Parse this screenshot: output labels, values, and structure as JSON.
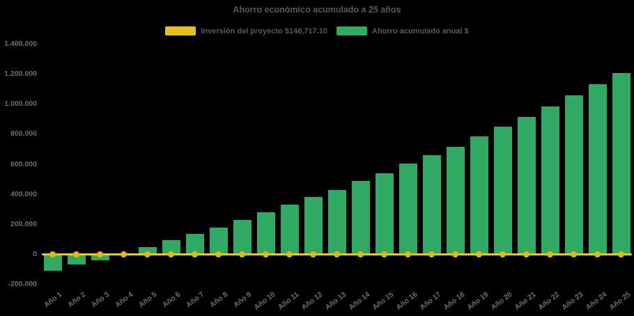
{
  "title": "Ahorro económico acumulado a 25 años",
  "legend": [
    {
      "label": "Inversión del proyecto $146,717.10",
      "color": "#E8C01A"
    },
    {
      "label": "Ahorro acumulado anual $",
      "color": "#2FA964"
    }
  ],
  "chart_data": {
    "type": "bar",
    "title": "Ahorro económico acumulado a 25 años",
    "background": "#000000",
    "grid": false,
    "legend_position": "top-center",
    "xlabel": "",
    "ylabel": "",
    "ylim": [
      -200000,
      1400000
    ],
    "y_ticks": [
      {
        "label": "1.400.000",
        "value": 1400000
      },
      {
        "label": "1.200.000",
        "value": 1200000
      },
      {
        "label": "1.000.000",
        "value": 1000000
      },
      {
        "label": "800.000",
        "value": 800000
      },
      {
        "label": "600.000",
        "value": 600000
      },
      {
        "label": "400.000",
        "value": 400000
      },
      {
        "label": "200.000",
        "value": 200000
      },
      {
        "label": "0",
        "value": 0
      },
      {
        "label": "-200.000",
        "value": -200000
      }
    ],
    "categories": [
      "Año 1",
      "Año 2",
      "Año 3",
      "Año 4",
      "Año 5",
      "Año 6",
      "Año 7",
      "Año 8",
      "Año 9",
      "Año 10",
      "Año 11",
      "Año 12",
      "Año 13",
      "Año 14",
      "Año 15",
      "Año 16",
      "Año 17",
      "Año 18",
      "Año 19",
      "Año 20",
      "Año 21",
      "Año 22",
      "Año 23",
      "Año 24",
      "Año 25"
    ],
    "series": [
      {
        "name": "Ahorro acumulado anual $",
        "type": "bar",
        "color": "#2FA964",
        "values": [
          -110000,
          -71000,
          -41000,
          -8000,
          45000,
          92000,
          136000,
          177000,
          227000,
          278000,
          327000,
          379000,
          428000,
          485000,
          539000,
          601000,
          657000,
          716000,
          782000,
          847000,
          913000,
          982000,
          1055000,
          1132000,
          1204000
        ]
      },
      {
        "name": "Inversión del proyecto $146,717.10",
        "type": "line",
        "line_color": "#EFC81E",
        "marker_color": "#E4B616",
        "stated_value_in_legend": "$146,717.10",
        "plotted_constant_value": 0
      }
    ]
  }
}
